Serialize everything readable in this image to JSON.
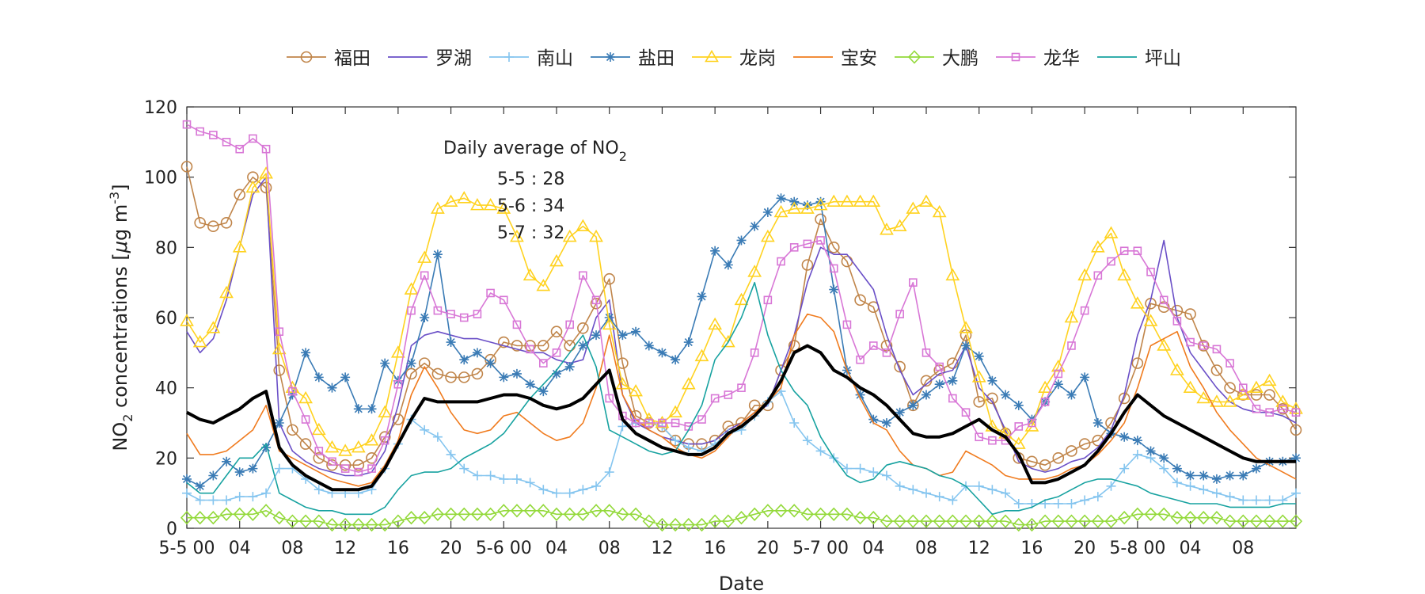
{
  "chart_data": {
    "type": "line",
    "title": "",
    "xlabel": "Date",
    "ylabel": {
      "base": "NO",
      "sub": "2",
      "rest": " concentrations [",
      "mu": "μ",
      "unit": "g m",
      "sup": "-3",
      "close": "]"
    },
    "ylim": [
      0,
      120
    ],
    "yticks": [
      0,
      20,
      40,
      60,
      80,
      100,
      120
    ],
    "xlim": [
      0,
      84
    ],
    "xticks": [
      {
        "x": 0,
        "label": "5-5 00"
      },
      {
        "x": 4,
        "label": "04"
      },
      {
        "x": 8,
        "label": "08"
      },
      {
        "x": 12,
        "label": "12"
      },
      {
        "x": 16,
        "label": "16"
      },
      {
        "x": 20,
        "label": "20"
      },
      {
        "x": 24,
        "label": "5-6 00"
      },
      {
        "x": 28,
        "label": "04"
      },
      {
        "x": 32,
        "label": "08"
      },
      {
        "x": 36,
        "label": "12"
      },
      {
        "x": 40,
        "label": "16"
      },
      {
        "x": 44,
        "label": "20"
      },
      {
        "x": 48,
        "label": "5-7 00"
      },
      {
        "x": 52,
        "label": "04"
      },
      {
        "x": 56,
        "label": "08"
      },
      {
        "x": 60,
        "label": "12"
      },
      {
        "x": 64,
        "label": "16"
      },
      {
        "x": 68,
        "label": "20"
      },
      {
        "x": 72,
        "label": "5-8 00"
      },
      {
        "x": 76,
        "label": "04"
      },
      {
        "x": 80,
        "label": "08"
      }
    ],
    "x_step_hours": 1,
    "annotation": {
      "title_base": "Daily average of NO",
      "title_sub": "2",
      "lines": [
        "5-5 : 28",
        "5-6 : 34",
        "5-7 : 32"
      ]
    },
    "legend_position": "top",
    "series": [
      {
        "name": "福田",
        "color": "#c0854a",
        "marker": "circle",
        "width": 1.6,
        "values": [
          103,
          87,
          86,
          87,
          95,
          100,
          97,
          45,
          28,
          24,
          20,
          18,
          18,
          18,
          20,
          26,
          31,
          44,
          47,
          44,
          43,
          43,
          44,
          48,
          53,
          52,
          52,
          52,
          56,
          52,
          57,
          64,
          71,
          47,
          32,
          30,
          29,
          25,
          24,
          24,
          25,
          29,
          30,
          35,
          35,
          45,
          52,
          75,
          88,
          80,
          76,
          65,
          63,
          52,
          46,
          35,
          42,
          45,
          47,
          55,
          36,
          37,
          27,
          20,
          19,
          18,
          20,
          22,
          24,
          25,
          30,
          37,
          47,
          64,
          63,
          62,
          61,
          52,
          45,
          40,
          38,
          38,
          38,
          34,
          28
        ]
      },
      {
        "name": "罗湖",
        "color": "#6a4fc7",
        "marker": "none",
        "width": 1.6,
        "values": [
          56,
          50,
          54,
          65,
          80,
          95,
          100,
          30,
          22,
          19,
          17,
          16,
          15,
          15,
          16,
          22,
          35,
          52,
          55,
          56,
          55,
          54,
          54,
          53,
          52,
          51,
          50,
          50,
          48,
          47,
          48,
          60,
          65,
          38,
          30,
          28,
          26,
          25,
          24,
          24,
          25,
          28,
          30,
          33,
          35,
          45,
          55,
          70,
          80,
          78,
          78,
          73,
          68,
          55,
          45,
          38,
          41,
          44,
          45,
          52,
          40,
          36,
          28,
          19,
          17,
          16,
          17,
          19,
          20,
          23,
          28,
          38,
          55,
          65,
          82,
          60,
          50,
          45,
          40,
          36,
          34,
          33,
          33,
          32,
          30
        ]
      },
      {
        "name": "南山",
        "color": "#85c5ef",
        "marker": "plus",
        "width": 1.6,
        "values": [
          10,
          8,
          8,
          8,
          9,
          9,
          10,
          17,
          17,
          14,
          11,
          10,
          10,
          10,
          11,
          17,
          24,
          31,
          28,
          26,
          21,
          17,
          15,
          15,
          14,
          14,
          13,
          11,
          10,
          10,
          11,
          12,
          16,
          29,
          30,
          30,
          29,
          25,
          23,
          22,
          24,
          27,
          28,
          32,
          36,
          39,
          30,
          25,
          22,
          20,
          17,
          17,
          16,
          15,
          12,
          11,
          10,
          9,
          8,
          12,
          12,
          11,
          10,
          7,
          7,
          7,
          7,
          7,
          8,
          9,
          12,
          17,
          21,
          20,
          17,
          13,
          12,
          11,
          10,
          9,
          8,
          8,
          8,
          8,
          10
        ]
      },
      {
        "name": "盐田",
        "color": "#3a7bb5",
        "marker": "star",
        "width": 1.6,
        "values": [
          14,
          12,
          15,
          19,
          16,
          17,
          23,
          30,
          38,
          50,
          43,
          40,
          43,
          34,
          34,
          47,
          42,
          47,
          60,
          78,
          53,
          48,
          50,
          47,
          43,
          44,
          41,
          39,
          44,
          46,
          52,
          55,
          60,
          55,
          56,
          52,
          50,
          48,
          53,
          66,
          79,
          75,
          82,
          86,
          90,
          94,
          93,
          92,
          93,
          68,
          45,
          38,
          31,
          30,
          33,
          35,
          38,
          41,
          42,
          52,
          49,
          42,
          38,
          35,
          31,
          36,
          41,
          38,
          43,
          30,
          27,
          26,
          25,
          22,
          20,
          17,
          15,
          15,
          14,
          15,
          15,
          17,
          19,
          19,
          20
        ]
      },
      {
        "name": "龙岗",
        "color": "#ffd21f",
        "marker": "triangle",
        "width": 1.6,
        "values": [
          59,
          53,
          57,
          67,
          80,
          97,
          101,
          51,
          40,
          37,
          28,
          23,
          22,
          23,
          25,
          33,
          50,
          68,
          77,
          91,
          93,
          94,
          92,
          92,
          91,
          83,
          72,
          69,
          76,
          83,
          86,
          83,
          58,
          41,
          39,
          31,
          30,
          33,
          41,
          49,
          58,
          53,
          65,
          73,
          83,
          90,
          91,
          91,
          92,
          93,
          93,
          93,
          93,
          85,
          86,
          91,
          93,
          90,
          72,
          57,
          43,
          29,
          27,
          24,
          29,
          40,
          46,
          60,
          72,
          80,
          84,
          72,
          64,
          59,
          52,
          45,
          40,
          37,
          36,
          36,
          38,
          40,
          42,
          36,
          34
        ]
      },
      {
        "name": "宝安",
        "color": "#f07b1e",
        "marker": "none",
        "width": 1.6,
        "values": [
          27,
          21,
          21,
          22,
          25,
          28,
          35,
          22,
          20,
          18,
          16,
          14,
          13,
          12,
          13,
          18,
          25,
          38,
          46,
          40,
          33,
          28,
          27,
          28,
          32,
          33,
          30,
          27,
          25,
          26,
          30,
          40,
          55,
          38,
          31,
          28,
          26,
          23,
          21,
          20,
          22,
          26,
          30,
          33,
          36,
          40,
          55,
          61,
          60,
          56,
          45,
          37,
          30,
          28,
          22,
          18,
          17,
          15,
          16,
          22,
          20,
          18,
          15,
          14,
          14,
          14,
          15,
          17,
          18,
          21,
          25,
          30,
          40,
          52,
          54,
          56,
          46,
          40,
          33,
          28,
          24,
          20,
          18,
          16,
          14
        ]
      },
      {
        "name": "大鹏",
        "color": "#93d93a",
        "marker": "diamond",
        "width": 1.6,
        "values": [
          3,
          3,
          3,
          4,
          4,
          4,
          5,
          3,
          2,
          2,
          2,
          1,
          1,
          1,
          1,
          1,
          2,
          3,
          3,
          4,
          4,
          4,
          4,
          4,
          5,
          5,
          5,
          5,
          4,
          4,
          4,
          5,
          5,
          4,
          4,
          2,
          1,
          1,
          1,
          1,
          2,
          2,
          3,
          4,
          5,
          5,
          5,
          4,
          4,
          4,
          4,
          3,
          3,
          2,
          2,
          2,
          2,
          2,
          2,
          2,
          2,
          2,
          2,
          1,
          1,
          2,
          2,
          2,
          2,
          2,
          2,
          3,
          4,
          4,
          4,
          3,
          3,
          3,
          3,
          2,
          2,
          2,
          2,
          2,
          2
        ]
      },
      {
        "name": "龙华",
        "color": "#d877d6",
        "marker": "square",
        "width": 1.6,
        "values": [
          115,
          113,
          112,
          110,
          108,
          111,
          108,
          56,
          39,
          31,
          22,
          19,
          17,
          16,
          17,
          25,
          41,
          62,
          72,
          62,
          61,
          60,
          61,
          67,
          65,
          58,
          51,
          47,
          50,
          58,
          72,
          65,
          37,
          32,
          30,
          30,
          30,
          30,
          29,
          31,
          37,
          38,
          40,
          50,
          65,
          76,
          80,
          81,
          82,
          74,
          58,
          48,
          52,
          50,
          61,
          70,
          50,
          46,
          37,
          33,
          26,
          25,
          25,
          29,
          30,
          36,
          44,
          52,
          62,
          72,
          76,
          79,
          79,
          73,
          65,
          59,
          53,
          52,
          51,
          47,
          40,
          34,
          33,
          34,
          33
        ]
      },
      {
        "name": "坪山",
        "color": "#17a2a0",
        "marker": "none",
        "width": 1.6,
        "values": [
          13,
          10,
          10,
          15,
          20,
          20,
          24,
          10,
          8,
          6,
          5,
          5,
          4,
          4,
          4,
          6,
          11,
          15,
          16,
          16,
          17,
          20,
          22,
          24,
          27,
          32,
          37,
          41,
          45,
          50,
          55,
          46,
          28,
          26,
          24,
          22,
          21,
          22,
          28,
          35,
          48,
          53,
          60,
          70,
          55,
          45,
          39,
          35,
          26,
          20,
          15,
          13,
          14,
          18,
          19,
          18,
          17,
          15,
          14,
          12,
          8,
          4,
          5,
          5,
          6,
          8,
          9,
          11,
          13,
          14,
          14,
          13,
          12,
          10,
          9,
          8,
          7,
          7,
          7,
          6,
          6,
          6,
          6,
          7,
          7
        ]
      },
      {
        "name": "",
        "color": "#000000",
        "marker": "none",
        "width": 4,
        "values": [
          33,
          31,
          30,
          32,
          34,
          37,
          39,
          23,
          18,
          15,
          13,
          11,
          11,
          11,
          12,
          17,
          24,
          31,
          37,
          36,
          36,
          36,
          36,
          37,
          38,
          38,
          37,
          35,
          34,
          35,
          37,
          41,
          45,
          31,
          27,
          25,
          23,
          22,
          21,
          21,
          23,
          27,
          29,
          32,
          36,
          42,
          50,
          52,
          50,
          45,
          43,
          40,
          38,
          35,
          31,
          27,
          26,
          26,
          27,
          29,
          31,
          28,
          26,
          21,
          13,
          13,
          14,
          16,
          18,
          22,
          27,
          33,
          38,
          35,
          32,
          30,
          28,
          26,
          24,
          22,
          20,
          19,
          19,
          19,
          19
        ]
      }
    ]
  },
  "axis": {
    "xlabel": "Date"
  }
}
